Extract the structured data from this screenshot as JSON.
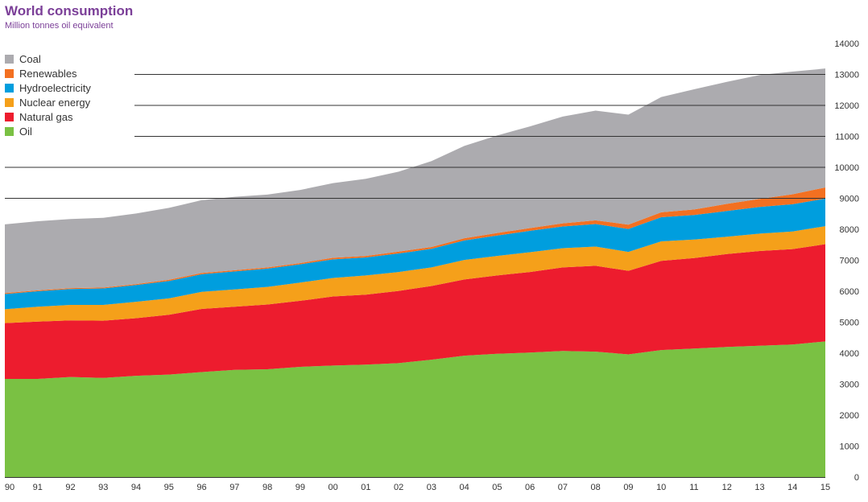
{
  "chart_data": {
    "type": "area",
    "stacked": true,
    "title": "World consumption",
    "subtitle": "Million tonnes oil equivalent",
    "x": [
      "90",
      "91",
      "92",
      "93",
      "94",
      "95",
      "96",
      "97",
      "98",
      "99",
      "00",
      "01",
      "02",
      "03",
      "04",
      "05",
      "06",
      "07",
      "08",
      "09",
      "10",
      "11",
      "12",
      "13",
      "14",
      "15"
    ],
    "series": [
      {
        "name": "Oil",
        "color": "#7ac143",
        "values": [
          3170,
          3170,
          3230,
          3200,
          3270,
          3310,
          3390,
          3460,
          3480,
          3560,
          3600,
          3630,
          3680,
          3790,
          3920,
          3980,
          4020,
          4070,
          4050,
          3960,
          4100,
          4150,
          4200,
          4240,
          4280,
          4380
        ]
      },
      {
        "name": "Natural gas",
        "color": "#ed1c2e",
        "values": [
          1800,
          1850,
          1830,
          1850,
          1860,
          1930,
          2040,
          2040,
          2090,
          2130,
          2230,
          2260,
          2330,
          2380,
          2460,
          2530,
          2600,
          2700,
          2770,
          2700,
          2880,
          2920,
          3000,
          3060,
          3080,
          3140
        ]
      },
      {
        "name": "Nuclear energy",
        "color": "#f5a01a",
        "values": [
          450,
          480,
          500,
          510,
          530,
          530,
          550,
          560,
          570,
          590,
          600,
          620,
          610,
          600,
          630,
          630,
          640,
          620,
          620,
          610,
          630,
          600,
          560,
          560,
          570,
          580
        ]
      },
      {
        "name": "Hydroelectricity",
        "color": "#009ede",
        "values": [
          490,
          500,
          510,
          530,
          540,
          560,
          570,
          580,
          590,
          590,
          600,
          580,
          600,
          600,
          630,
          660,
          690,
          700,
          730,
          740,
          780,
          790,
          830,
          860,
          880,
          890
        ]
      },
      {
        "name": "Renewables",
        "color": "#f37021",
        "values": [
          30,
          30,
          30,
          30,
          30,
          40,
          40,
          40,
          40,
          40,
          50,
          50,
          60,
          60,
          70,
          80,
          90,
          100,
          120,
          140,
          160,
          180,
          230,
          260,
          320,
          360
        ]
      },
      {
        "name": "Coal",
        "color": "#acabaf",
        "values": [
          2220,
          2230,
          2230,
          2250,
          2280,
          2320,
          2350,
          2370,
          2350,
          2360,
          2410,
          2490,
          2580,
          2770,
          2980,
          3150,
          3280,
          3450,
          3540,
          3550,
          3720,
          3880,
          3940,
          4000,
          3960,
          3840
        ]
      }
    ],
    "ylim": [
      0,
      14000
    ],
    "yticks": [
      "0",
      "1000",
      "2000",
      "3000",
      "4000",
      "5000",
      "6000",
      "7000",
      "8000",
      "9000",
      "10000",
      "11000",
      "12000",
      "13000",
      "14000"
    ],
    "legend_position": "top-left",
    "grid": true
  }
}
